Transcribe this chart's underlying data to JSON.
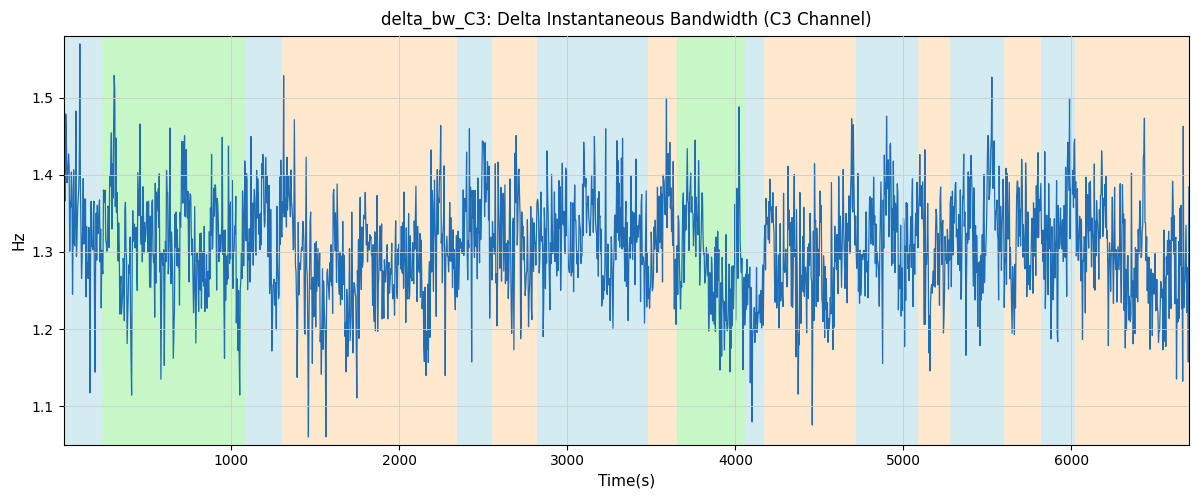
{
  "title": "delta_bw_C3: Delta Instantaneous Bandwidth (C3 Channel)",
  "xlabel": "Time(s)",
  "ylabel": "Hz",
  "xlim": [
    0,
    6700
  ],
  "ylim": [
    1.05,
    1.58
  ],
  "yticks": [
    1.1,
    1.2,
    1.3,
    1.4,
    1.5
  ],
  "xticks": [
    1000,
    2000,
    3000,
    4000,
    5000,
    6000
  ],
  "line_color": "#1f6eb5",
  "line_width": 0.9,
  "grid_color": "#cccccc",
  "seed": 12345,
  "n_points": 2000,
  "bands": [
    {
      "xmin": 0,
      "xmax": 230,
      "color": "#add8e6",
      "alpha": 0.5
    },
    {
      "xmin": 230,
      "xmax": 1080,
      "color": "#90ee90",
      "alpha": 0.5
    },
    {
      "xmin": 1080,
      "xmax": 1300,
      "color": "#add8e6",
      "alpha": 0.5
    },
    {
      "xmin": 1300,
      "xmax": 2340,
      "color": "#ffd59e",
      "alpha": 0.5
    },
    {
      "xmin": 2340,
      "xmax": 2550,
      "color": "#add8e6",
      "alpha": 0.5
    },
    {
      "xmin": 2550,
      "xmax": 2820,
      "color": "#ffd59e",
      "alpha": 0.5
    },
    {
      "xmin": 2820,
      "xmax": 3480,
      "color": "#add8e6",
      "alpha": 0.5
    },
    {
      "xmin": 3480,
      "xmax": 3650,
      "color": "#ffd59e",
      "alpha": 0.5
    },
    {
      "xmin": 3650,
      "xmax": 4060,
      "color": "#90ee90",
      "alpha": 0.5
    },
    {
      "xmin": 4060,
      "xmax": 4170,
      "color": "#add8e6",
      "alpha": 0.5
    },
    {
      "xmin": 4170,
      "xmax": 4720,
      "color": "#ffd59e",
      "alpha": 0.5
    },
    {
      "xmin": 4720,
      "xmax": 5090,
      "color": "#add8e6",
      "alpha": 0.5
    },
    {
      "xmin": 5090,
      "xmax": 5280,
      "color": "#ffd59e",
      "alpha": 0.5
    },
    {
      "xmin": 5280,
      "xmax": 5600,
      "color": "#add8e6",
      "alpha": 0.5
    },
    {
      "xmin": 5600,
      "xmax": 5820,
      "color": "#ffd59e",
      "alpha": 0.5
    },
    {
      "xmin": 5820,
      "xmax": 6020,
      "color": "#add8e6",
      "alpha": 0.5
    },
    {
      "xmin": 6020,
      "xmax": 6700,
      "color": "#ffd59e",
      "alpha": 0.5
    }
  ],
  "title_fontsize": 12,
  "label_fontsize": 11,
  "figsize": [
    12.0,
    5.0
  ],
  "dpi": 100
}
